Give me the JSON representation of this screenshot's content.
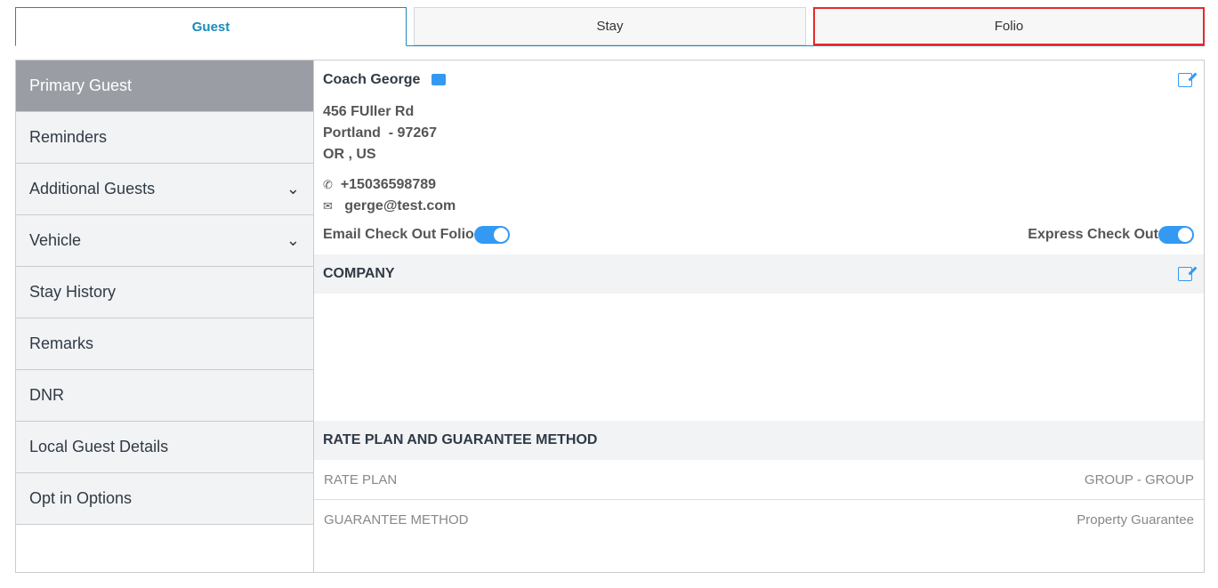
{
  "tabs": [
    {
      "label": "Guest"
    },
    {
      "label": "Stay"
    },
    {
      "label": "Folio"
    }
  ],
  "sidebar": {
    "items": [
      {
        "label": "Primary Guest"
      },
      {
        "label": "Reminders"
      },
      {
        "label": "Additional Guests",
        "chevron": true
      },
      {
        "label": "Vehicle",
        "chevron": true
      },
      {
        "label": "Stay History"
      },
      {
        "label": "Remarks"
      },
      {
        "label": "DNR"
      },
      {
        "label": "Local Guest Details"
      },
      {
        "label": "Opt in Options"
      }
    ]
  },
  "guest": {
    "name": "Coach George",
    "address1": "456 FUller Rd",
    "address2": "Portland  - 97267",
    "address3": "OR , US",
    "phone": "+15036598789",
    "email": "gerge@test.com",
    "email_checkout_label": "Email Check Out Folio",
    "email_checkout": true,
    "express_checkout_label": "Express Check Out",
    "express_checkout": true
  },
  "company": {
    "title": "COMPANY"
  },
  "rate": {
    "title": "RATE PLAN AND GUARANTEE METHOD",
    "rows": [
      {
        "label": "RATE PLAN",
        "value": "GROUP - GROUP"
      },
      {
        "label": "GUARANTEE METHOD",
        "value": "Property Guarantee"
      }
    ]
  },
  "colors": {
    "accent": "#1b8bb8",
    "toggle": "#3399f3",
    "highlight": "#e32b2b"
  }
}
